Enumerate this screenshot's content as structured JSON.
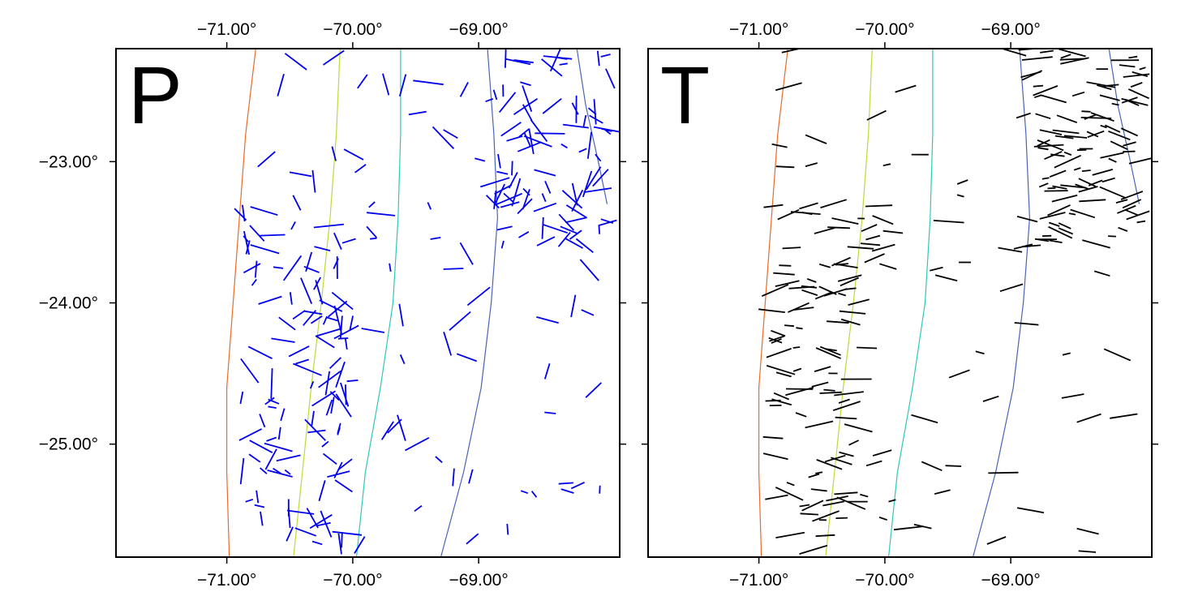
{
  "panels": [
    {
      "id": "P",
      "letter": "P",
      "stick_color": "#0000ee",
      "top_ticks": [
        {
          "value": -71,
          "label": "−71.00°"
        },
        {
          "value": -70,
          "label": "−70.00°"
        },
        {
          "value": -69,
          "label": "−69.00°"
        }
      ],
      "bottom_ticks": [
        {
          "value": -71,
          "label": "−71.00°"
        },
        {
          "value": -70,
          "label": "−70.00°"
        },
        {
          "value": -69,
          "label": "−69.00°"
        }
      ],
      "left_ticks": [
        {
          "value": -23,
          "label": "−23.00°"
        },
        {
          "value": -24,
          "label": "−24.00°"
        },
        {
          "value": -25,
          "label": "−25.00°"
        }
      ]
    },
    {
      "id": "T",
      "letter": "T",
      "stick_color": "#000000",
      "top_ticks": [
        {
          "value": -71,
          "label": "−71.00°"
        },
        {
          "value": -70,
          "label": "−70.00°"
        },
        {
          "value": -69,
          "label": "−69.00°"
        }
      ],
      "bottom_ticks": [
        {
          "value": -71,
          "label": "−71.00°"
        },
        {
          "value": -70,
          "label": "−70.00°"
        },
        {
          "value": -69,
          "label": "−69.00°"
        }
      ],
      "left_ticks": [
        {
          "value": -23,
          "label": ""
        },
        {
          "value": -24,
          "label": ""
        },
        {
          "value": -25,
          "label": ""
        }
      ]
    }
  ],
  "contours": [
    {
      "color": "#ea6a2a",
      "points": [
        [
          -70.77,
          -22.2
        ],
        [
          -70.85,
          -22.8
        ],
        [
          -70.9,
          -23.4
        ],
        [
          -70.95,
          -24.0
        ],
        [
          -71.0,
          -24.6
        ],
        [
          -71.0,
          -25.2
        ],
        [
          -70.98,
          -25.8
        ]
      ]
    },
    {
      "color": "#b8dc3a",
      "points": [
        [
          -70.1,
          -22.2
        ],
        [
          -70.13,
          -22.8
        ],
        [
          -70.18,
          -23.4
        ],
        [
          -70.25,
          -24.0
        ],
        [
          -70.33,
          -24.6
        ],
        [
          -70.4,
          -25.2
        ],
        [
          -70.47,
          -25.8
        ]
      ]
    },
    {
      "color": "#2ec8b8",
      "points": [
        [
          -69.62,
          -22.2
        ],
        [
          -69.62,
          -22.8
        ],
        [
          -69.64,
          -23.4
        ],
        [
          -69.68,
          -24.0
        ],
        [
          -69.78,
          -24.6
        ],
        [
          -69.9,
          -25.2
        ],
        [
          -69.97,
          -25.8
        ]
      ]
    },
    {
      "color": "#4a64b4",
      "points": [
        [
          -68.93,
          -22.2
        ],
        [
          -68.88,
          -22.8
        ],
        [
          -68.85,
          -23.4
        ],
        [
          -68.9,
          -24.0
        ],
        [
          -68.98,
          -24.6
        ],
        [
          -69.12,
          -25.2
        ],
        [
          -69.3,
          -25.8
        ]
      ]
    },
    {
      "color": "#4a64b4",
      "points": [
        [
          -68.22,
          -22.2
        ],
        [
          -68.15,
          -22.6
        ],
        [
          -68.05,
          -23.0
        ],
        [
          -67.98,
          -23.3
        ]
      ]
    }
  ]
}
